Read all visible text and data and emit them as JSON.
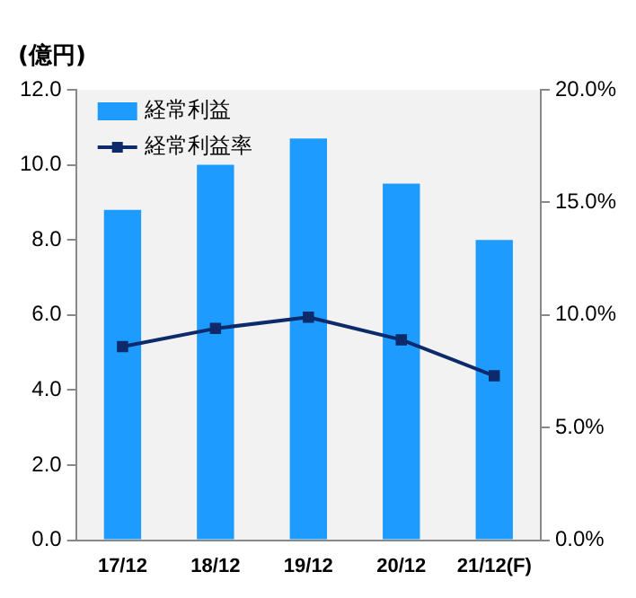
{
  "chart_data": {
    "type": "bar",
    "ylabel": "(億円)",
    "categories": [
      "17/12",
      "18/12",
      "19/12",
      "20/12",
      "21/12(F)"
    ],
    "series": [
      {
        "name": "経常利益",
        "color": "#1e9bff",
        "values": [
          8.8,
          10.0,
          10.7,
          9.5,
          8.0
        ]
      },
      {
        "name": "経常利益率",
        "type": "line",
        "axis": "y2",
        "color": "#0d2a6b",
        "marker": "square",
        "values": [
          8.6,
          9.4,
          9.9,
          8.9,
          7.3
        ]
      }
    ],
    "ylim": [
      0,
      12
    ],
    "yticks": [
      {
        "value": 0,
        "label": "0.0"
      },
      {
        "value": 2,
        "label": "2.0"
      },
      {
        "value": 4,
        "label": "4.0"
      },
      {
        "value": 6,
        "label": "6.0"
      },
      {
        "value": 8,
        "label": "8.0"
      },
      {
        "value": 10,
        "label": "10.0"
      },
      {
        "value": 12,
        "label": "12.0"
      }
    ],
    "y2lim": [
      0,
      20
    ],
    "y2ticks": [
      {
        "value": 0,
        "label": "0.0%"
      },
      {
        "value": 5,
        "label": "5.0%"
      },
      {
        "value": 10,
        "label": "10.0%"
      },
      {
        "value": 15,
        "label": "15.0%"
      },
      {
        "value": 20,
        "label": "20.0%"
      }
    ],
    "grid": false,
    "legend": "top left"
  }
}
